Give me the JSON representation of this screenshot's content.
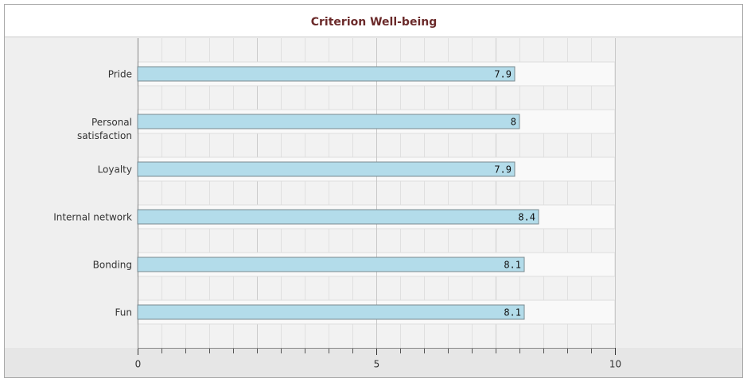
{
  "chart_data": {
    "type": "bar",
    "orientation": "horizontal",
    "title": "Criterion Well-being",
    "categories": [
      "Pride",
      "Personal satisfaction",
      "Loyalty",
      "Internal network",
      "Bonding",
      "Fun"
    ],
    "values": [
      7.9,
      8,
      7.9,
      8.4,
      8.1,
      8.1
    ],
    "color": "#b3dcea",
    "xlim": [
      0,
      10
    ],
    "xticks": [
      0,
      5,
      10
    ],
    "grid": true
  }
}
